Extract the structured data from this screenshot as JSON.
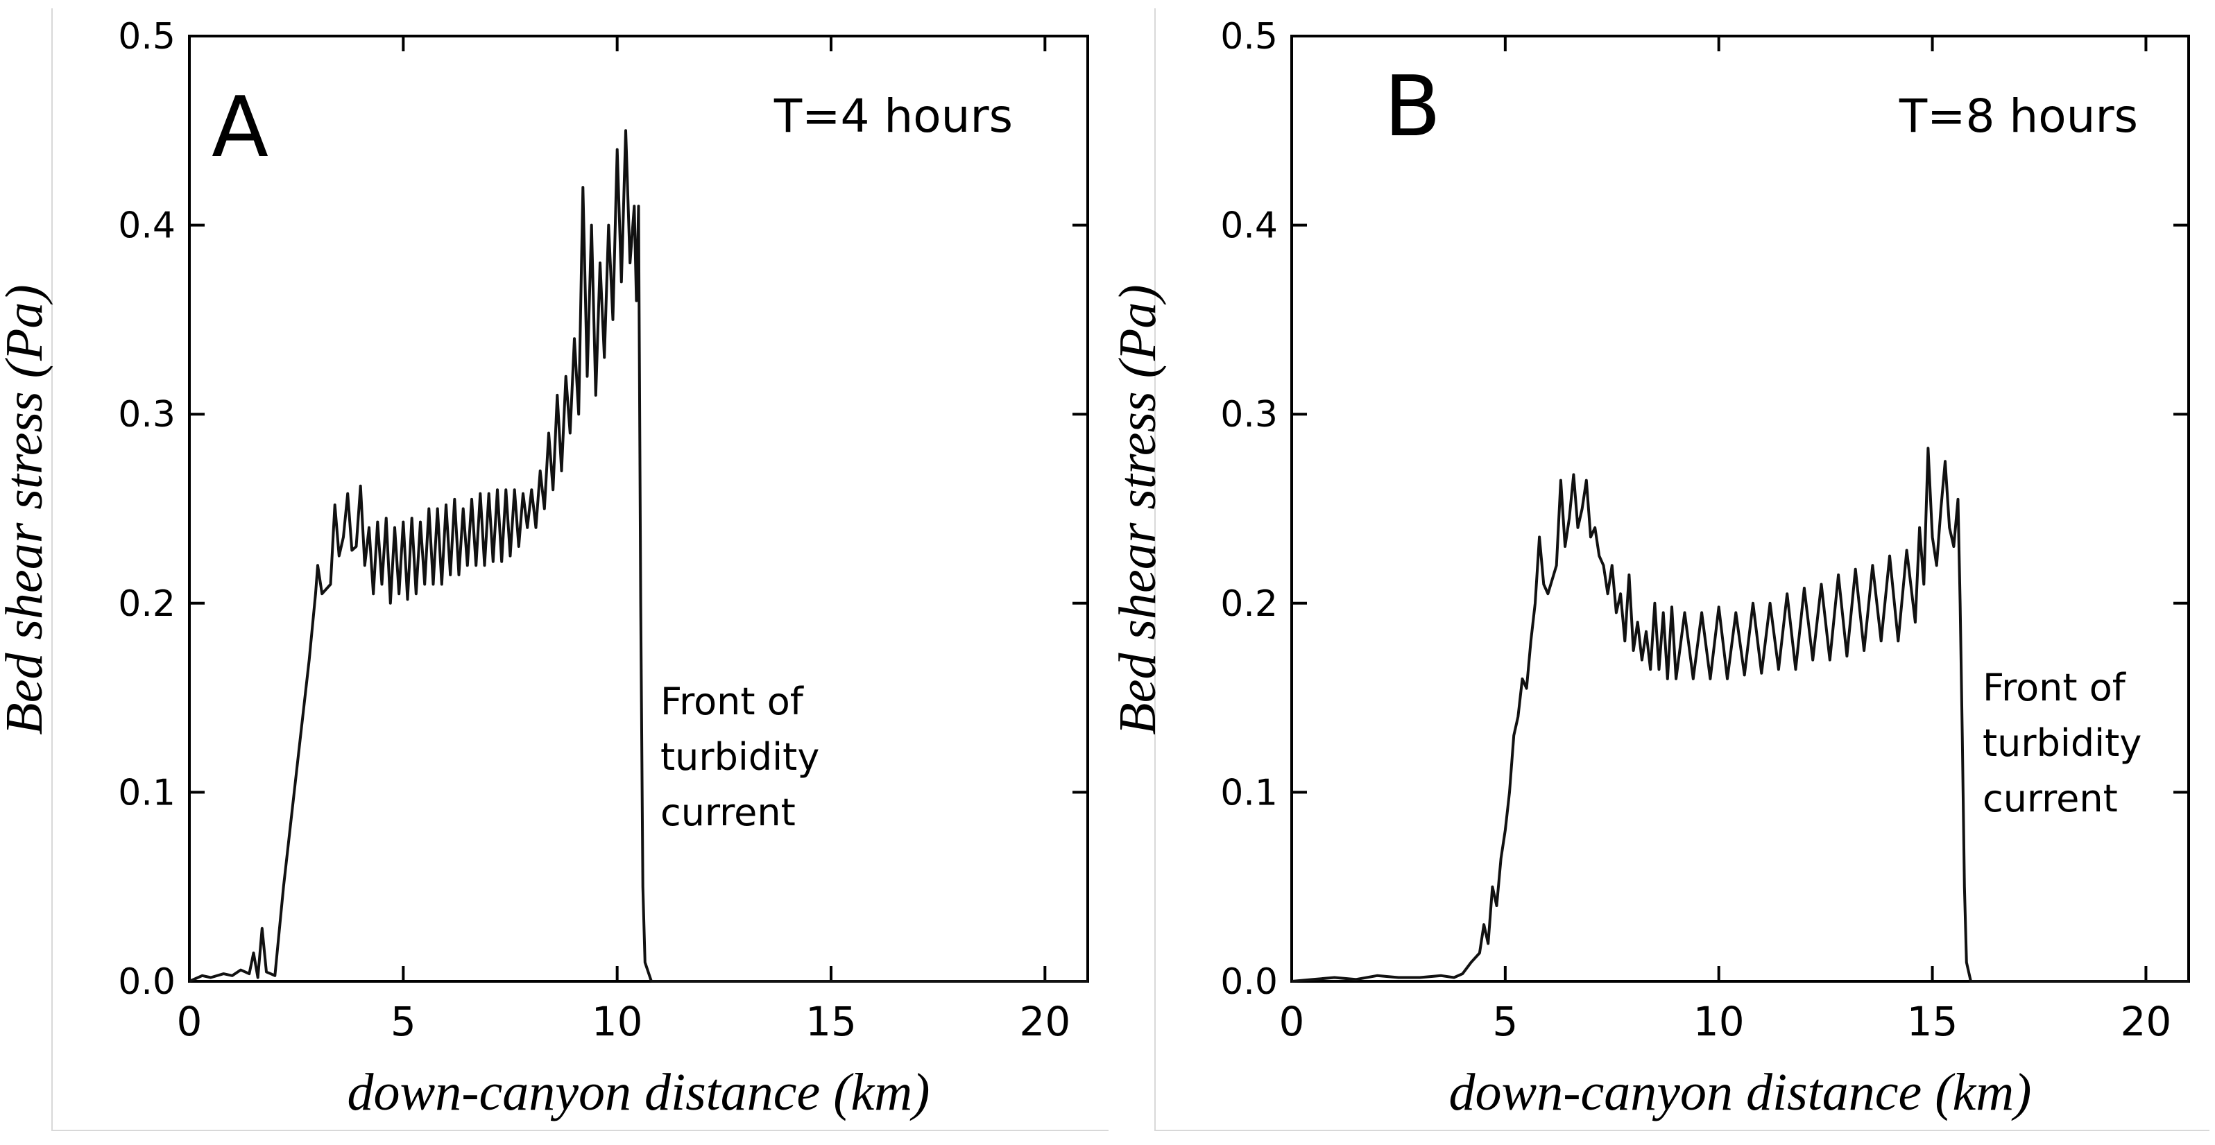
{
  "colors": {
    "line": "#111111",
    "frame": "#000000",
    "background": "#ffffff"
  },
  "chart_data": [
    {
      "type": "line",
      "panel_letter": "A",
      "time_label": "T=4 hours",
      "xlabel": "down-canyon distance (km)",
      "ylabel": "Bed shear stress (Pa)",
      "xlim": [
        0,
        21
      ],
      "ylim": [
        0,
        0.5
      ],
      "xticks": [
        "0",
        "5",
        "10",
        "15",
        "20"
      ],
      "yticks": [
        "0.0",
        "0.1",
        "0.2",
        "0.3",
        "0.4",
        "0.5"
      ],
      "annotation": [
        "Front of",
        "turbidity",
        "current"
      ],
      "series": [
        {
          "name": "bed shear stress",
          "x": [
            0.0,
            0.3,
            0.5,
            0.8,
            1.0,
            1.2,
            1.4,
            1.5,
            1.6,
            1.7,
            1.8,
            1.9,
            2.0,
            2.2,
            2.4,
            2.6,
            2.8,
            2.95,
            3.0,
            3.1,
            3.3,
            3.4,
            3.5,
            3.6,
            3.7,
            3.8,
            3.9,
            4.0,
            4.1,
            4.2,
            4.3,
            4.4,
            4.5,
            4.6,
            4.7,
            4.8,
            4.9,
            5.0,
            5.1,
            5.2,
            5.3,
            5.4,
            5.5,
            5.6,
            5.7,
            5.8,
            5.9,
            6.0,
            6.1,
            6.2,
            6.3,
            6.4,
            6.5,
            6.6,
            6.7,
            6.8,
            6.9,
            7.0,
            7.1,
            7.2,
            7.3,
            7.4,
            7.5,
            7.6,
            7.7,
            7.8,
            7.9,
            8.0,
            8.1,
            8.2,
            8.3,
            8.4,
            8.5,
            8.6,
            8.7,
            8.8,
            8.9,
            9.0,
            9.1,
            9.2,
            9.3,
            9.4,
            9.5,
            9.6,
            9.7,
            9.8,
            9.9,
            10.0,
            10.1,
            10.2,
            10.3,
            10.4,
            10.45,
            10.5,
            10.55,
            10.6,
            10.65,
            10.8,
            12.0,
            21.0
          ],
          "y": [
            0.0,
            0.003,
            0.002,
            0.004,
            0.003,
            0.006,
            0.004,
            0.015,
            0.002,
            0.028,
            0.005,
            0.004,
            0.003,
            0.05,
            0.09,
            0.13,
            0.17,
            0.205,
            0.22,
            0.205,
            0.21,
            0.252,
            0.225,
            0.235,
            0.258,
            0.228,
            0.23,
            0.262,
            0.22,
            0.24,
            0.205,
            0.243,
            0.21,
            0.245,
            0.2,
            0.24,
            0.205,
            0.243,
            0.202,
            0.245,
            0.205,
            0.243,
            0.21,
            0.25,
            0.21,
            0.25,
            0.21,
            0.252,
            0.215,
            0.255,
            0.215,
            0.25,
            0.22,
            0.255,
            0.22,
            0.258,
            0.22,
            0.258,
            0.222,
            0.26,
            0.222,
            0.26,
            0.225,
            0.26,
            0.23,
            0.258,
            0.24,
            0.26,
            0.24,
            0.27,
            0.25,
            0.29,
            0.26,
            0.31,
            0.27,
            0.32,
            0.29,
            0.34,
            0.3,
            0.42,
            0.32,
            0.4,
            0.31,
            0.38,
            0.33,
            0.4,
            0.35,
            0.44,
            0.37,
            0.45,
            0.38,
            0.41,
            0.36,
            0.41,
            0.2,
            0.05,
            0.01,
            0.0,
            0.0,
            0.0
          ]
        }
      ]
    },
    {
      "type": "line",
      "panel_letter": "B",
      "time_label": "T=8 hours",
      "xlabel": "down-canyon distance (km)",
      "ylabel": "Bed shear stress (Pa)",
      "xlim": [
        0,
        21
      ],
      "ylim": [
        0,
        0.5
      ],
      "xticks": [
        "0",
        "5",
        "10",
        "15",
        "20"
      ],
      "yticks": [
        "0.0",
        "0.1",
        "0.2",
        "0.3",
        "0.4",
        "0.5"
      ],
      "annotation": [
        "Front of",
        "turbidity",
        "current"
      ],
      "series": [
        {
          "name": "bed shear stress",
          "x": [
            0.0,
            0.5,
            1.0,
            1.5,
            2.0,
            2.5,
            3.0,
            3.5,
            3.8,
            4.0,
            4.2,
            4.4,
            4.5,
            4.6,
            4.7,
            4.8,
            4.9,
            5.0,
            5.1,
            5.2,
            5.3,
            5.4,
            5.5,
            5.6,
            5.7,
            5.8,
            5.9,
            6.0,
            6.2,
            6.3,
            6.4,
            6.5,
            6.6,
            6.7,
            6.8,
            6.9,
            7.0,
            7.1,
            7.2,
            7.3,
            7.4,
            7.5,
            7.6,
            7.7,
            7.8,
            7.9,
            8.0,
            8.1,
            8.2,
            8.3,
            8.4,
            8.5,
            8.6,
            8.7,
            8.8,
            8.9,
            9.0,
            9.2,
            9.4,
            9.6,
            9.8,
            10.0,
            10.2,
            10.4,
            10.6,
            10.8,
            11.0,
            11.2,
            11.4,
            11.6,
            11.8,
            12.0,
            12.2,
            12.4,
            12.6,
            12.8,
            13.0,
            13.2,
            13.4,
            13.6,
            13.8,
            14.0,
            14.2,
            14.4,
            14.6,
            14.7,
            14.8,
            14.9,
            15.0,
            15.1,
            15.2,
            15.3,
            15.4,
            15.5,
            15.6,
            15.65,
            15.7,
            15.75,
            15.8,
            15.9,
            17.0,
            21.0
          ],
          "y": [
            0.0,
            0.001,
            0.002,
            0.001,
            0.003,
            0.002,
            0.002,
            0.003,
            0.002,
            0.004,
            0.01,
            0.015,
            0.03,
            0.02,
            0.05,
            0.04,
            0.065,
            0.08,
            0.1,
            0.13,
            0.14,
            0.16,
            0.155,
            0.18,
            0.2,
            0.235,
            0.21,
            0.205,
            0.22,
            0.265,
            0.23,
            0.245,
            0.268,
            0.24,
            0.25,
            0.265,
            0.235,
            0.24,
            0.225,
            0.22,
            0.205,
            0.22,
            0.195,
            0.205,
            0.18,
            0.215,
            0.175,
            0.19,
            0.17,
            0.185,
            0.165,
            0.2,
            0.165,
            0.195,
            0.16,
            0.198,
            0.16,
            0.195,
            0.16,
            0.195,
            0.16,
            0.198,
            0.16,
            0.195,
            0.162,
            0.2,
            0.163,
            0.2,
            0.165,
            0.205,
            0.165,
            0.208,
            0.17,
            0.21,
            0.17,
            0.215,
            0.172,
            0.218,
            0.175,
            0.22,
            0.18,
            0.225,
            0.18,
            0.228,
            0.19,
            0.24,
            0.21,
            0.282,
            0.235,
            0.22,
            0.25,
            0.275,
            0.24,
            0.23,
            0.255,
            0.2,
            0.13,
            0.05,
            0.01,
            0.0,
            0.0,
            0.0
          ]
        }
      ]
    }
  ]
}
